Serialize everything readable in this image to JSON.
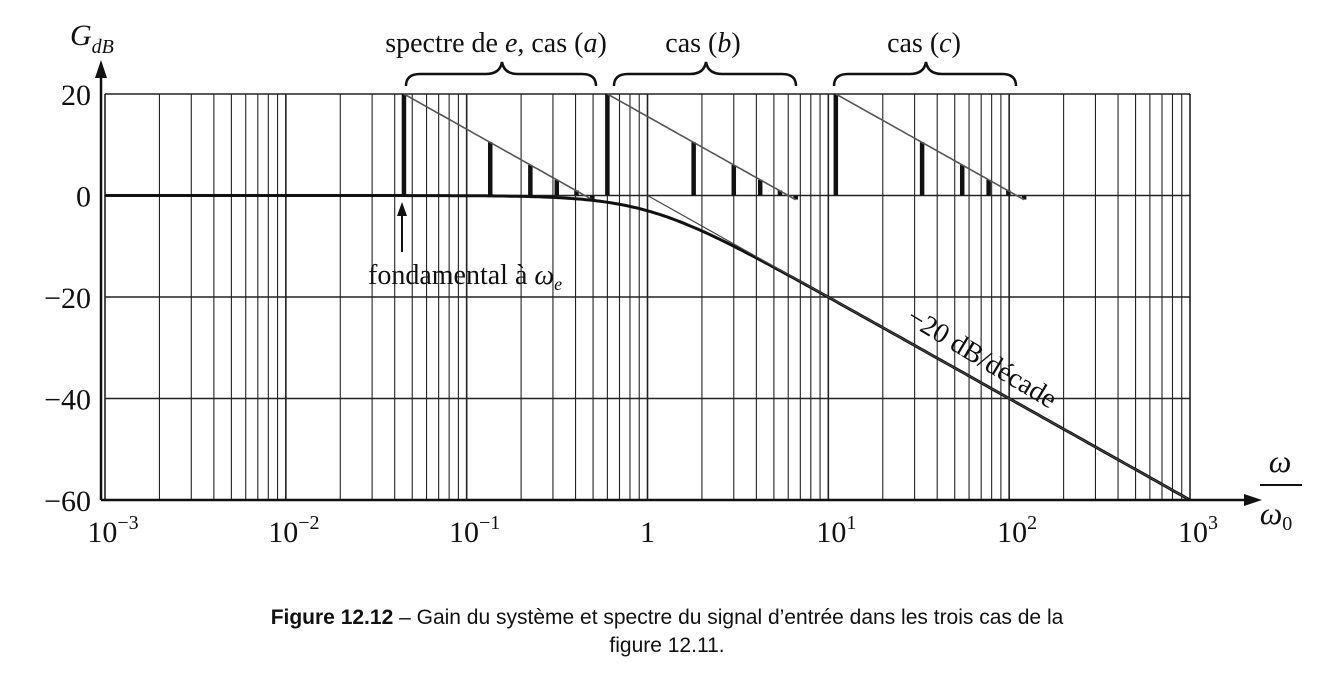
{
  "chart_data": {
    "type": "line",
    "ylabel": "G",
    "ylabel_sub": "dB",
    "xlabel_num": "ω",
    "xlabel_den": "ω",
    "xlabel_den_sub": "0",
    "x_scale": "log",
    "xlim": [
      0.001,
      1000
    ],
    "ylim": [
      -60,
      20
    ],
    "grid": true,
    "y_ticks": [
      {
        "value": 20,
        "label": "20"
      },
      {
        "value": 0,
        "label": "0"
      },
      {
        "value": -20,
        "label": "−20"
      },
      {
        "value": -40,
        "label": "−40"
      },
      {
        "value": -60,
        "label": "−60"
      }
    ],
    "x_ticks": [
      {
        "value": 0.001,
        "base": "10",
        "exp": "−3"
      },
      {
        "value": 0.01,
        "base": "10",
        "exp": "−2"
      },
      {
        "value": 0.1,
        "base": "10",
        "exp": "−1"
      },
      {
        "value": 1,
        "base": "1",
        "exp": ""
      },
      {
        "value": 10,
        "base": "10",
        "exp": "1"
      },
      {
        "value": 100,
        "base": "10",
        "exp": "2"
      },
      {
        "value": 1000,
        "base": "10",
        "exp": "3"
      }
    ],
    "gain_curve": {
      "cutoff": 1,
      "points": [
        {
          "x": 0.001,
          "y": 0
        },
        {
          "x": 0.1,
          "y": -0.04
        },
        {
          "x": 0.3,
          "y": -0.37
        },
        {
          "x": 0.5,
          "y": -0.97
        },
        {
          "x": 1,
          "y": -3
        },
        {
          "x": 2,
          "y": -7
        },
        {
          "x": 5,
          "y": -14.2
        },
        {
          "x": 10,
          "y": -20
        },
        {
          "x": 100,
          "y": -40
        },
        {
          "x": 1000,
          "y": -60
        }
      ]
    },
    "spectra": [
      {
        "case": "a",
        "fundamental": 0.045
      },
      {
        "case": "b",
        "fundamental": 0.6
      },
      {
        "case": "c",
        "fundamental": 11
      }
    ],
    "harmonic_orders": [
      1,
      3,
      5,
      7,
      9,
      11
    ],
    "harmonic_levels_db": [
      20,
      10.5,
      6,
      3.1,
      1,
      -0.8
    ],
    "envelope_end_factor": 11,
    "annotations": {
      "slope_label": "−20 dB/décade",
      "fundamental_label": "fondamental à ",
      "fundamental_symbol": "ω",
      "fundamental_symbol_sub": "e",
      "case_a_prefix": "spectre de ",
      "case_a_var": "e",
      "case_a_mid": ", cas (",
      "case_a_letter": "a",
      "case_a_end": ")",
      "case_b_prefix": "cas (",
      "case_b_letter": "b",
      "case_b_end": ")",
      "case_c_prefix": "cas (",
      "case_c_letter": "c",
      "case_c_end": ")"
    }
  },
  "caption": {
    "label": "Figure 12.12",
    "separator": " – ",
    "line1": "Gain du système et spectre du signal d’entrée dans les trois cas de la",
    "line2": "figure 12.11."
  }
}
